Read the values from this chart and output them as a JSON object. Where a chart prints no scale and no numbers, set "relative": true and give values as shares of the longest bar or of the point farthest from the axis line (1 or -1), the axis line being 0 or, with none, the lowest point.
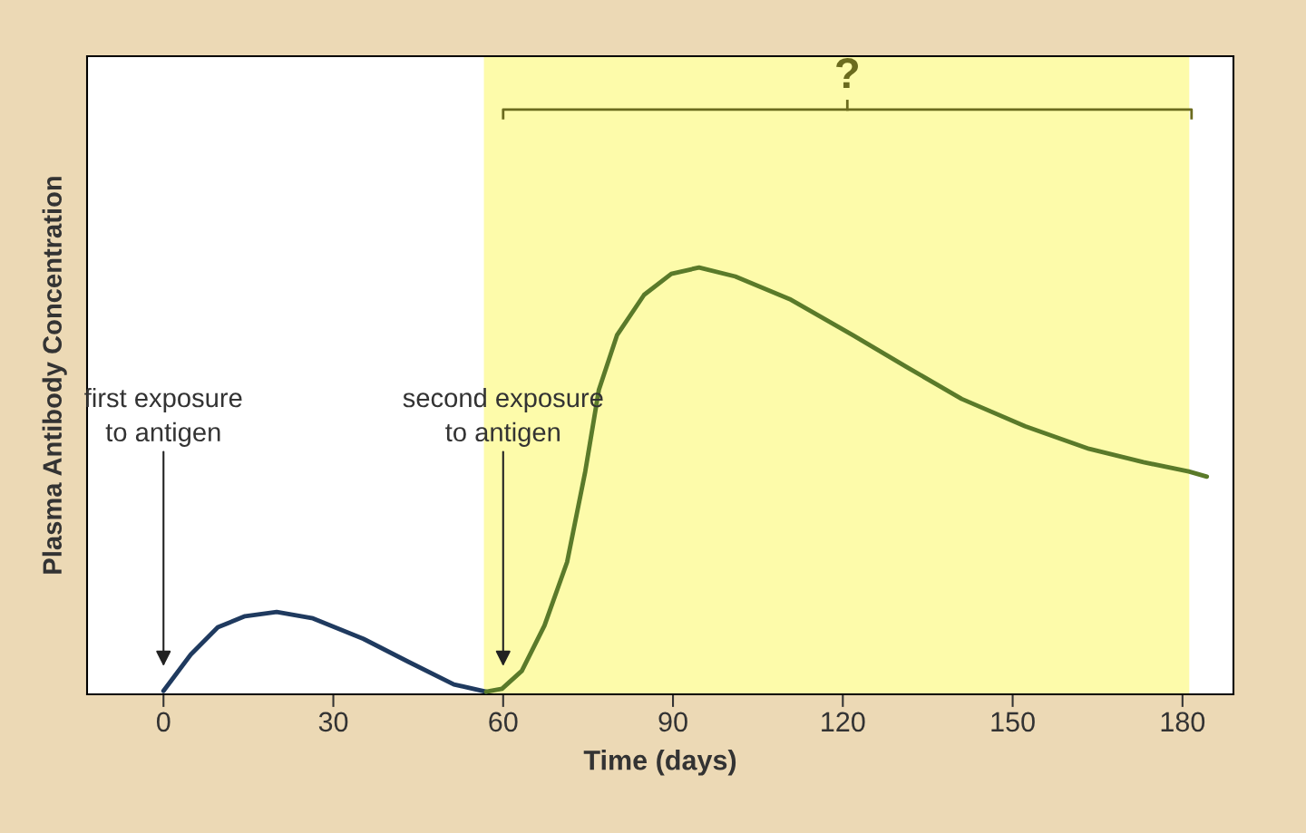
{
  "chart_data": {
    "type": "line",
    "relative": true,
    "xlabel": "Time (days)",
    "ylabel": "Plasma Antibody Concentration",
    "xlim": [
      -13.5,
      189
    ],
    "xticks": [
      0,
      30,
      60,
      90,
      120,
      150,
      180
    ],
    "grid": false,
    "legend": false,
    "marker": "none",
    "line_style": "solid",
    "series": [
      {
        "color": "#1f3a5f",
        "x": [
          0,
          4.8,
          9.6,
          14.4,
          20,
          26.4,
          35.3,
          43.3,
          51.3,
          57
        ],
        "values": [
          0.008,
          0.093,
          0.157,
          0.183,
          0.193,
          0.178,
          0.13,
          0.076,
          0.023,
          0.006
        ]
      },
      {
        "color": "#5a7a2a",
        "x": [
          57,
          59.8,
          63.3,
          67.3,
          71.3,
          74.5,
          76.9,
          80.1,
          84.9,
          89.7,
          94.6,
          101,
          110.6,
          121.8,
          131.4,
          141,
          152.2,
          163.5,
          173.1,
          181.1,
          184.3
        ],
        "values": [
          0.006,
          0.013,
          0.055,
          0.161,
          0.31,
          0.522,
          0.713,
          0.841,
          0.936,
          0.985,
          1.0,
          0.979,
          0.926,
          0.841,
          0.766,
          0.692,
          0.628,
          0.575,
          0.544,
          0.522,
          0.51
        ]
      }
    ],
    "bands": [
      {
        "axis": "x",
        "from": 56.6,
        "to": 181.2,
        "label": "?",
        "color": "#fdfbaa"
      }
    ],
    "annotations": [
      "first exposure\nto antigen",
      "second exposure\nto antigen"
    ]
  }
}
